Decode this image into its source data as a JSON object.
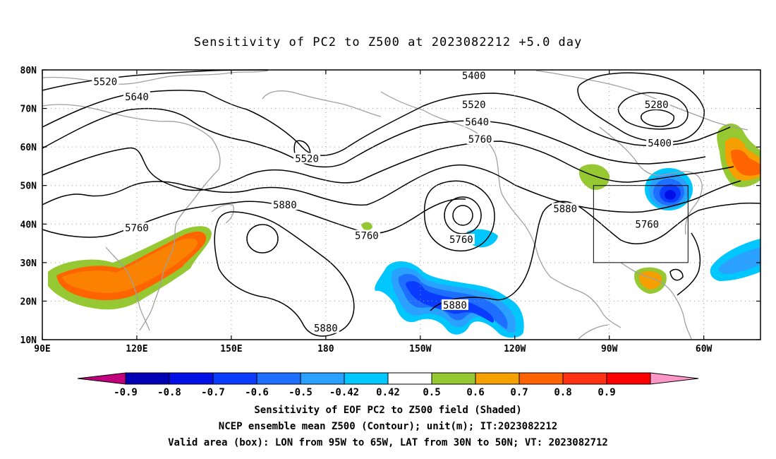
{
  "title": "Sensitivity of PC2 to Z500 at 2023082212 +5.0 day",
  "map": {
    "lat_labels": [
      "80N",
      "70N",
      "60N",
      "50N",
      "40N",
      "30N",
      "20N",
      "10N"
    ],
    "lon_labels": [
      "90E",
      "120E",
      "150E",
      "180",
      "150W",
      "120W",
      "90W",
      "60W"
    ],
    "extent": {
      "lon_min": 90,
      "lon_max": 318,
      "lat_min": 10,
      "lat_max": 80
    },
    "valid_box": {
      "lon": [
        265,
        295
      ],
      "lat": [
        30,
        50
      ]
    }
  },
  "contour_labels": [
    {
      "text": "5520",
      "lon": 110,
      "lat": 77
    },
    {
      "text": "5640",
      "lon": 120,
      "lat": 73
    },
    {
      "text": "5400",
      "lon": 227,
      "lat": 78.5
    },
    {
      "text": "5520",
      "lon": 227,
      "lat": 71
    },
    {
      "text": "5640",
      "lon": 228,
      "lat": 66.5
    },
    {
      "text": "5280",
      "lon": 285,
      "lat": 71
    },
    {
      "text": "5400",
      "lon": 286,
      "lat": 61
    },
    {
      "text": "5520",
      "lon": 174,
      "lat": 57
    },
    {
      "text": "5760",
      "lon": 229,
      "lat": 62
    },
    {
      "text": "5880",
      "lon": 167,
      "lat": 45
    },
    {
      "text": "5880",
      "lon": 256,
      "lat": 44
    },
    {
      "text": "5760",
      "lon": 120,
      "lat": 39
    },
    {
      "text": "5760",
      "lon": 193,
      "lat": 37
    },
    {
      "text": "5760",
      "lon": 223,
      "lat": 36
    },
    {
      "text": "5760",
      "lon": 282,
      "lat": 40
    },
    {
      "text": "5880",
      "lon": 221,
      "lat": 19
    },
    {
      "text": "5880",
      "lon": 180,
      "lat": 13
    }
  ],
  "colorbar": {
    "colors": [
      "#c0007d",
      "#0000b4",
      "#0010e6",
      "#0a3cff",
      "#1e6eff",
      "#2aa0ff",
      "#00c8ff",
      "#ffffff",
      "#96c832",
      "#f5a000",
      "#ff6400",
      "#ff3214",
      "#ff0000",
      "#ff96c8"
    ],
    "labels": [
      "-0.9",
      "-0.8",
      "-0.7",
      "-0.6",
      "-0.5",
      "-0.42",
      "0.42",
      "0.5",
      "0.6",
      "0.7",
      "0.8",
      "0.9"
    ]
  },
  "captions": [
    "Sensitivity of EOF PC2 to Z500 field (Shaded)",
    "NCEP ensemble mean Z500 (Contour); unit(m); IT:2023082212",
    "Valid area (box): LON from 95W to 65W, LAT from 30N to 50N; VT: 2023082712"
  ]
}
